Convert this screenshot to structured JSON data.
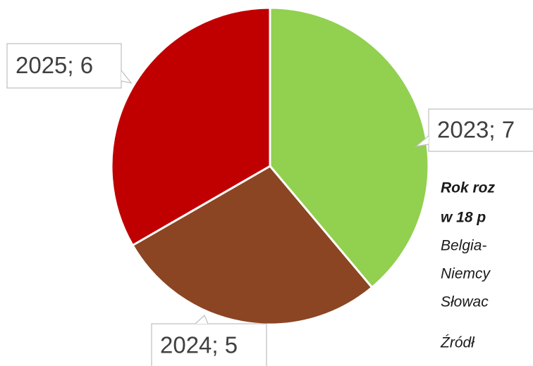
{
  "chart_data": {
    "type": "pie",
    "categories": [
      "2023",
      "2024",
      "2025"
    ],
    "values": [
      7,
      5,
      6
    ],
    "value_labels": [
      "2023; 7",
      "2024; 5",
      "2025; 6"
    ],
    "colors": [
      "#92d050",
      "#8b4523",
      "#c00000"
    ],
    "notes": [
      {
        "text": "Rok roz",
        "bold": true
      },
      {
        "text": "w 18 p",
        "bold": true
      },
      {
        "text": "Belgia-",
        "bold": false
      },
      {
        "text": "Niemcy",
        "bold": false
      },
      {
        "text": "Słowac",
        "bold": false
      },
      {
        "text": "Źródł",
        "bold": false
      }
    ]
  }
}
